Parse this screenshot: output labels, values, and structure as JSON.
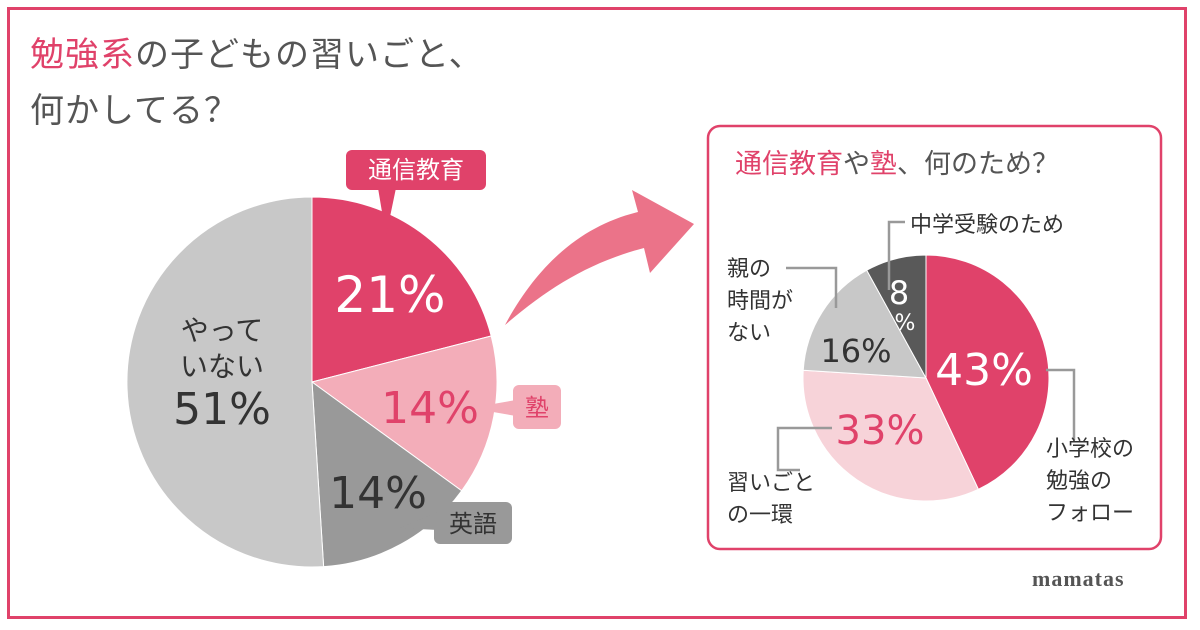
{
  "title": {
    "accent": "勉強系",
    "rest": "の子どもの習いごと、",
    "line2": "何かしてる？"
  },
  "brand": "mamatas",
  "colors": {
    "accent": "#e0426a",
    "light_pink": "#f3adb9",
    "pale_pink": "#f7d3d9",
    "gray": "#999999",
    "light_gray": "#c8c8c8",
    "dark_gray": "#595959",
    "text": "#555555"
  },
  "right_box": {
    "title_accent1": "通信教育",
    "title_mid": "や",
    "title_accent2": "塾",
    "title_rest": "、何のため？"
  },
  "chart_data": [
    {
      "type": "pie",
      "slices": [
        {
          "label": "通信教育",
          "value": 21,
          "value_label": "21%",
          "color": "#e0426a"
        },
        {
          "label": "塾",
          "value": 14,
          "value_label": "14%",
          "color": "#f3adb9"
        },
        {
          "label": "英語",
          "value": 14,
          "value_label": "14%",
          "color": "#999999"
        },
        {
          "label": "やっていない",
          "label_lines": [
            "やって",
            "いない"
          ],
          "value": 51,
          "value_label": "51%",
          "color": "#c8c8c8"
        }
      ]
    },
    {
      "type": "pie",
      "slices": [
        {
          "label": "小学校の勉強のフォロー",
          "label_lines": [
            "小学校の",
            "勉強の",
            "フォロー"
          ],
          "value": 43,
          "value_label": "43%",
          "color": "#e0426a"
        },
        {
          "label": "習いごとの一環",
          "label_lines": [
            "習いごと",
            "の一環"
          ],
          "value": 33,
          "value_label": "33%",
          "color": "#f7d3d9"
        },
        {
          "label": "親の時間がない",
          "label_lines": [
            "親の",
            "時間が",
            "ない"
          ],
          "value": 16,
          "value_label": "16%",
          "color": "#c8c8c8"
        },
        {
          "label": "中学受験のため",
          "value": 8,
          "value_label_lines": [
            "8",
            "%"
          ],
          "color": "#595959"
        }
      ]
    }
  ]
}
